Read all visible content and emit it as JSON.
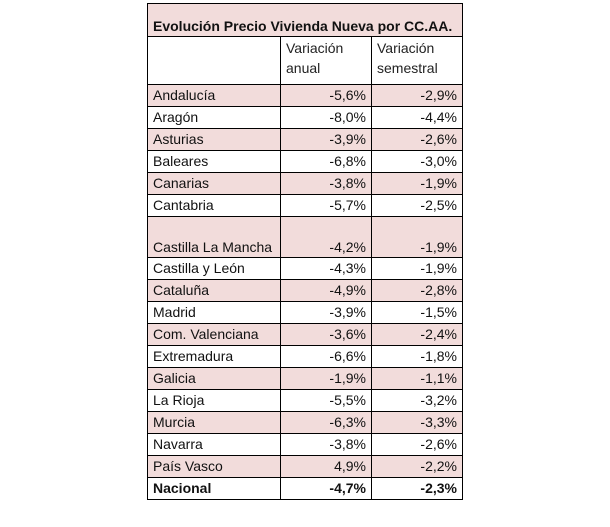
{
  "table": {
    "title": "Evolución Precio Vivienda Nueva por CC.AA.",
    "columns": [
      "",
      "Variación anual",
      "Variación semestral"
    ],
    "highlight_color": "#f2dcdb",
    "rows": [
      {
        "region": "Andalucía",
        "anual": "-5,6%",
        "semestral": "-2,9%"
      },
      {
        "region": "Aragón",
        "anual": "-8,0%",
        "semestral": "-4,4%"
      },
      {
        "region": "Asturias",
        "anual": "-3,9%",
        "semestral": "-2,6%"
      },
      {
        "region": "Baleares",
        "anual": "-6,8%",
        "semestral": "-3,0%"
      },
      {
        "region": "Canarias",
        "anual": "-3,8%",
        "semestral": "-1,9%"
      },
      {
        "region": "Cantabria",
        "anual": "-5,7%",
        "semestral": "-2,5%"
      },
      {
        "region": "Castilla La Mancha",
        "anual": "-4,2%",
        "semestral": "-1,9%"
      },
      {
        "region": "Castilla y León",
        "anual": "-4,3%",
        "semestral": "-1,9%"
      },
      {
        "region": "Cataluña",
        "anual": "-4,9%",
        "semestral": "-2,8%"
      },
      {
        "region": "Madrid",
        "anual": "-3,9%",
        "semestral": "-1,5%"
      },
      {
        "region": "Com. Valenciana",
        "anual": "-3,6%",
        "semestral": "-2,4%"
      },
      {
        "region": "Extremadura",
        "anual": "-6,6%",
        "semestral": "-1,8%"
      },
      {
        "region": "Galicia",
        "anual": "-1,9%",
        "semestral": "-1,1%"
      },
      {
        "region": "La Rioja",
        "anual": "-5,5%",
        "semestral": "-3,2%"
      },
      {
        "region": "Murcia",
        "anual": "-6,3%",
        "semestral": "-3,3%"
      },
      {
        "region": "Navarra",
        "anual": "-3,8%",
        "semestral": "-2,6%"
      },
      {
        "region": "País Vasco",
        "anual": "4,9%",
        "semestral": "-2,2%"
      }
    ],
    "total": {
      "region": "Nacional",
      "anual": "-4,7%",
      "semestral": "-2,3%"
    }
  }
}
